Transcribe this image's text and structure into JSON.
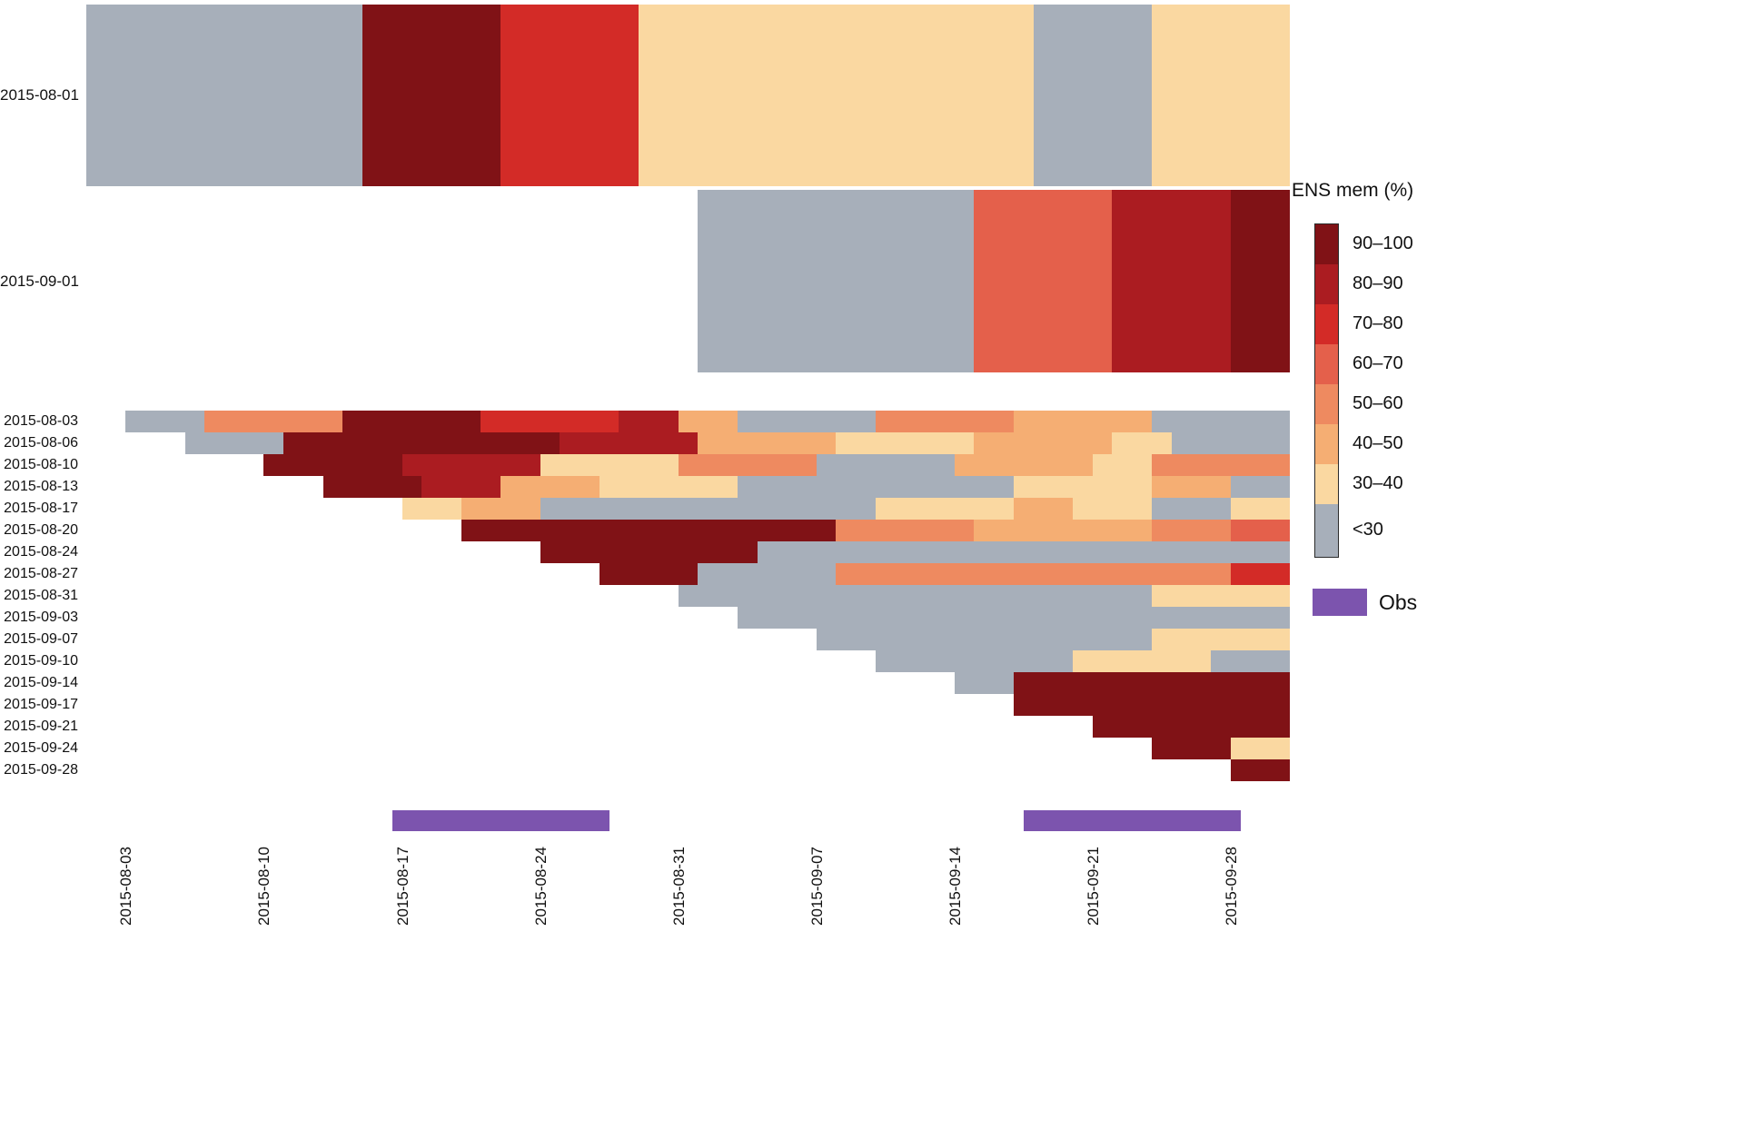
{
  "palette": {
    "90-100": "#801216",
    "80-90": "#ab1c21",
    "70-80": "#d32b27",
    "60-70": "#e4604b",
    "50-60": "#ee8a60",
    "40-50": "#f5ae73",
    "30-40": "#fad8a1",
    "<30": "#a7afba",
    "obs": "#7c54ae"
  },
  "legend": {
    "title": "ENS mem (%)",
    "obs_label": "Obs",
    "items": [
      {
        "key": "90-100",
        "label": "90–100"
      },
      {
        "key": "80-90",
        "label": "80–90"
      },
      {
        "key": "70-80",
        "label": "70–80"
      },
      {
        "key": "60-70",
        "label": "60–70"
      },
      {
        "key": "50-60",
        "label": "50–60"
      },
      {
        "key": "40-50",
        "label": "40–50"
      },
      {
        "key": "30-40",
        "label": "30–40"
      },
      {
        "key": "<30",
        "label": "<30"
      }
    ]
  },
  "chart_data": {
    "type": "heatmap",
    "x_axis": {
      "start": "2015-08-01",
      "end": "2015-10-01",
      "tick_labels": [
        "2015-08-03",
        "2015-08-10",
        "2015-08-17",
        "2015-08-24",
        "2015-08-31",
        "2015-09-07",
        "2015-09-14",
        "2015-09-21",
        "2015-09-28"
      ]
    },
    "monthly_rows": [
      {
        "label": "2015-08-01",
        "init": "2015-08-01",
        "segments": [
          [
            "<30",
            14
          ],
          [
            "90-100",
            7
          ],
          [
            "70-80",
            7
          ],
          [
            "30-40",
            20
          ],
          [
            "<30",
            6
          ],
          [
            "30-40",
            7
          ]
        ]
      },
      {
        "label": "2015-09-01",
        "init": "2015-09-01",
        "segments": [
          [
            "<30",
            14
          ],
          [
            "60-70",
            7
          ],
          [
            "80-90",
            6
          ],
          [
            "90-100",
            3
          ]
        ]
      }
    ],
    "forecast_rows": [
      {
        "label": "2015-08-03",
        "init": "2015-08-03",
        "segments": [
          [
            "<30",
            4
          ],
          [
            "50-60",
            7
          ],
          [
            "90-100",
            7
          ],
          [
            "70-80",
            7
          ],
          [
            "80-90",
            3
          ],
          [
            "40-50",
            3
          ],
          [
            "<30",
            7
          ],
          [
            "50-60",
            7
          ],
          [
            "40-50",
            7
          ],
          [
            "<30",
            7
          ]
        ]
      },
      {
        "label": "2015-08-06",
        "init": "2015-08-06",
        "segments": [
          [
            "<30",
            5
          ],
          [
            "90-100",
            14
          ],
          [
            "80-90",
            7
          ],
          [
            "40-50",
            7
          ],
          [
            "30-40",
            7
          ],
          [
            "40-50",
            7
          ],
          [
            "30-40",
            3
          ],
          [
            "<30",
            6
          ]
        ]
      },
      {
        "label": "2015-08-10",
        "init": "2015-08-10",
        "segments": [
          [
            "90-100",
            7
          ],
          [
            "80-90",
            7
          ],
          [
            "30-40",
            7
          ],
          [
            "50-60",
            7
          ],
          [
            "<30",
            7
          ],
          [
            "40-50",
            7
          ],
          [
            "30-40",
            3
          ],
          [
            "50-60",
            7
          ]
        ]
      },
      {
        "label": "2015-08-13",
        "init": "2015-08-13",
        "segments": [
          [
            "90-100",
            5
          ],
          [
            "80-90",
            4
          ],
          [
            "40-50",
            5
          ],
          [
            "30-40",
            7
          ],
          [
            "<30",
            14
          ],
          [
            "30-40",
            7
          ],
          [
            "40-50",
            4
          ],
          [
            "<30",
            3
          ]
        ]
      },
      {
        "label": "2015-08-17",
        "init": "2015-08-17",
        "segments": [
          [
            "30-40",
            3
          ],
          [
            "40-50",
            4
          ],
          [
            "<30",
            17
          ],
          [
            "30-40",
            7
          ],
          [
            "40-50",
            3
          ],
          [
            "30-40",
            4
          ],
          [
            "<30",
            4
          ],
          [
            "30-40",
            3
          ]
        ]
      },
      {
        "label": "2015-08-20",
        "init": "2015-08-20",
        "segments": [
          [
            "90-100",
            19
          ],
          [
            "50-60",
            7
          ],
          [
            "40-50",
            9
          ],
          [
            "50-60",
            4
          ],
          [
            "60-70",
            3
          ]
        ]
      },
      {
        "label": "2015-08-24",
        "init": "2015-08-24",
        "segments": [
          [
            "90-100",
            11
          ],
          [
            "<30",
            27
          ]
        ]
      },
      {
        "label": "2015-08-27",
        "init": "2015-08-27",
        "segments": [
          [
            "90-100",
            5
          ],
          [
            "<30",
            7
          ],
          [
            "50-60",
            20
          ],
          [
            "70-80",
            3
          ]
        ]
      },
      {
        "label": "2015-08-31",
        "init": "2015-08-31",
        "segments": [
          [
            "<30",
            24
          ],
          [
            "30-40",
            7
          ]
        ]
      },
      {
        "label": "2015-09-03",
        "init": "2015-09-03",
        "segments": [
          [
            "<30",
            28
          ]
        ]
      },
      {
        "label": "2015-09-07",
        "init": "2015-09-07",
        "segments": [
          [
            "<30",
            17
          ],
          [
            "30-40",
            7
          ]
        ]
      },
      {
        "label": "2015-09-10",
        "init": "2015-09-10",
        "segments": [
          [
            "<30",
            10
          ],
          [
            "30-40",
            7
          ],
          [
            "<30",
            4
          ]
        ]
      },
      {
        "label": "2015-09-14",
        "init": "2015-09-14",
        "segments": [
          [
            "<30",
            3
          ],
          [
            "90-100",
            14
          ]
        ]
      },
      {
        "label": "2015-09-17",
        "init": "2015-09-17",
        "segments": [
          [
            "90-100",
            14
          ]
        ]
      },
      {
        "label": "2015-09-21",
        "init": "2015-09-21",
        "segments": [
          [
            "90-100",
            10
          ]
        ]
      },
      {
        "label": "2015-09-24",
        "init": "2015-09-24",
        "segments": [
          [
            "90-100",
            4
          ],
          [
            "30-40",
            3
          ]
        ]
      },
      {
        "label": "2015-09-28",
        "init": "2015-09-28",
        "segments": [
          [
            "90-100",
            3
          ]
        ]
      }
    ],
    "obs_periods": [
      {
        "start": "2015-08-16",
        "end": "2015-08-27"
      },
      {
        "start": "2015-09-17",
        "end": "2015-09-28"
      }
    ]
  }
}
